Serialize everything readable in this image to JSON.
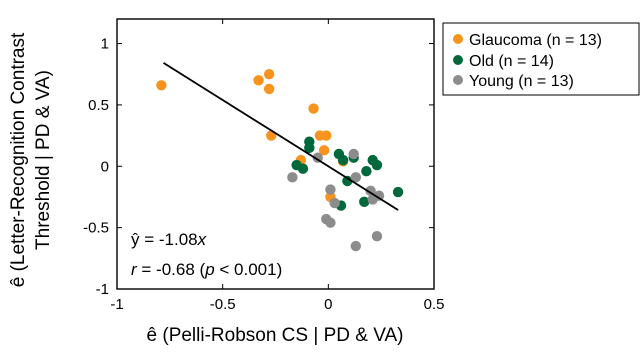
{
  "chart_data": {
    "type": "scatter",
    "xlabel": "ê (Pelli-Robson CS | PD & VA)",
    "ylabel_line1": "ê (Letter-Recognition Contrast",
    "ylabel_line2": "Threshold | PD & VA)",
    "xlim": [
      -1,
      0.5
    ],
    "ylim": [
      -1,
      1.2
    ],
    "xticks": [
      -1,
      -0.5,
      0,
      0.5
    ],
    "xtick_labels": [
      "-1",
      "-0.5",
      "0",
      "0.5"
    ],
    "yticks": [
      -1,
      -0.5,
      0,
      0.5,
      1
    ],
    "ytick_labels": [
      "-1",
      "-0.5",
      "0",
      "0.5",
      "1"
    ],
    "grid": false,
    "legend_position": "outside-top-right",
    "annotations": {
      "eq_prefix": "ŷ = -1.08",
      "eq_var": "x",
      "r_var": "r",
      "r_mid": " = -0.68 (",
      "p_var": "p",
      "p_tail": " < 0.001)"
    },
    "fit_line": {
      "slope": -1.08,
      "x_range": [
        -0.78,
        0.33
      ]
    },
    "series": [
      {
        "name": "Glaucoma (n = 13)",
        "color": "#F7941D",
        "points": [
          [
            -0.79,
            0.66
          ],
          [
            -0.33,
            0.7
          ],
          [
            -0.28,
            0.75
          ],
          [
            -0.28,
            0.63
          ],
          [
            -0.27,
            0.25
          ],
          [
            -0.07,
            0.47
          ],
          [
            -0.04,
            0.25
          ],
          [
            -0.01,
            0.25
          ],
          [
            -0.02,
            0.13
          ],
          [
            -0.13,
            0.05
          ],
          [
            0.07,
            0.04
          ],
          [
            0.23,
            0.01
          ],
          [
            0.01,
            -0.25
          ]
        ]
      },
      {
        "name": "Old (n = 14)",
        "color": "#00693C",
        "points": [
          [
            -0.09,
            0.2
          ],
          [
            -0.09,
            0.15
          ],
          [
            -0.15,
            0.01
          ],
          [
            -0.12,
            -0.02
          ],
          [
            0.05,
            0.1
          ],
          [
            0.07,
            0.05
          ],
          [
            0.12,
            0.07
          ],
          [
            0.09,
            -0.12
          ],
          [
            0.18,
            -0.04
          ],
          [
            0.21,
            0.05
          ],
          [
            0.23,
            0.01
          ],
          [
            0.33,
            -0.21
          ],
          [
            0.17,
            -0.29
          ],
          [
            0.06,
            -0.32
          ]
        ]
      },
      {
        "name": "Young (n = 13)",
        "color": "#8C8C8C",
        "points": [
          [
            -0.17,
            -0.09
          ],
          [
            -0.05,
            0.07
          ],
          [
            0.12,
            0.1
          ],
          [
            0.13,
            -0.09
          ],
          [
            0.01,
            -0.19
          ],
          [
            0.03,
            -0.3
          ],
          [
            0.2,
            -0.2
          ],
          [
            0.21,
            -0.27
          ],
          [
            0.24,
            -0.24
          ],
          [
            -0.01,
            -0.43
          ],
          [
            0.01,
            -0.46
          ],
          [
            0.13,
            -0.65
          ],
          [
            0.23,
            -0.57
          ]
        ]
      }
    ]
  }
}
